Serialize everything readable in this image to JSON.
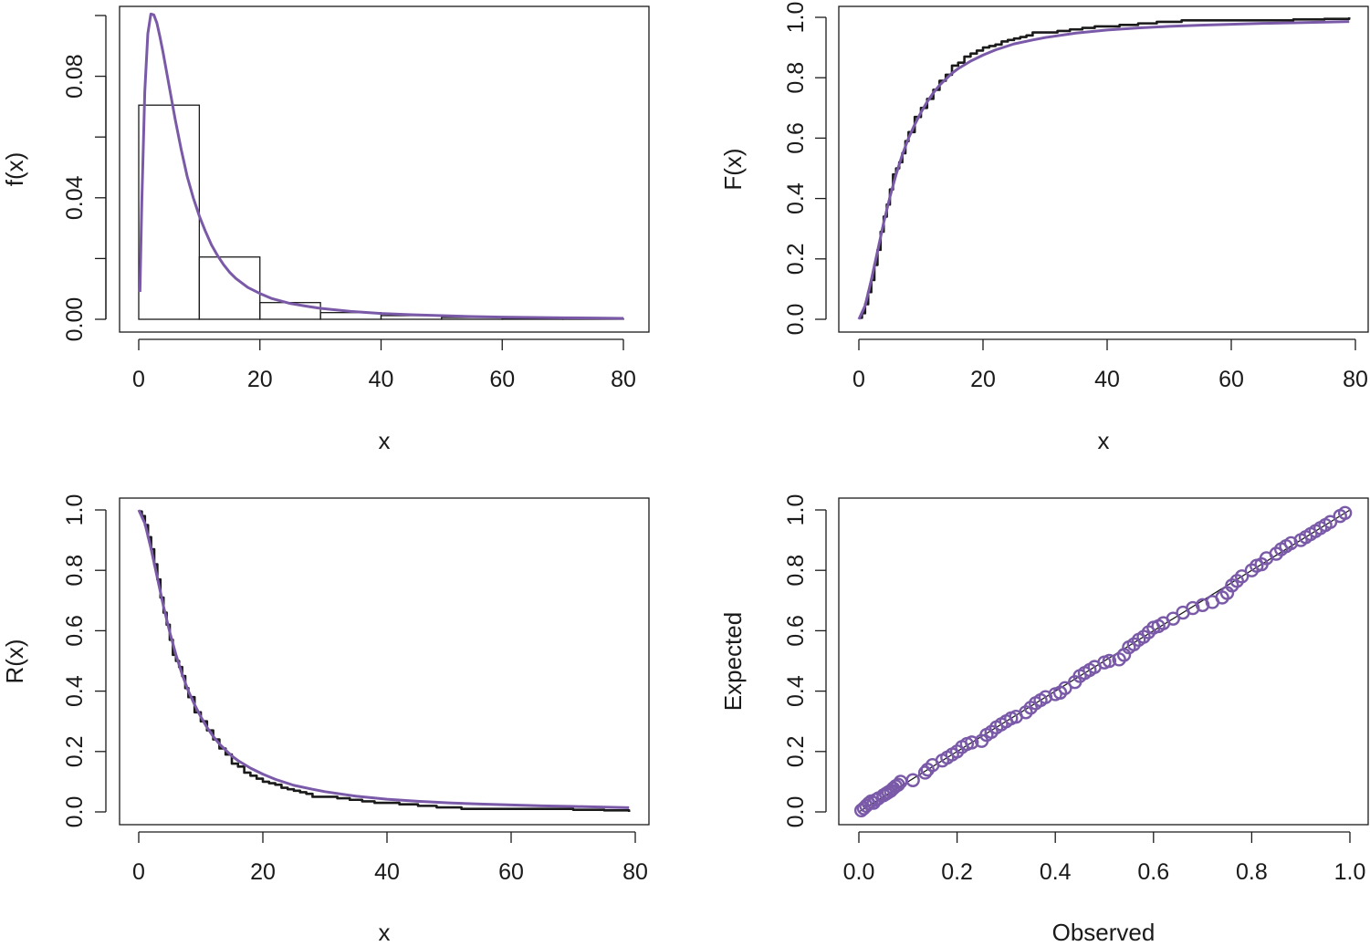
{
  "chart_data": [
    {
      "type": "bar",
      "panel": "top-left",
      "xlabel": "x",
      "ylabel": "f(x)",
      "xlim": [
        0,
        80
      ],
      "ylim": [
        0,
        0.1
      ],
      "xticks": [
        "0",
        "20",
        "40",
        "60",
        "80"
      ],
      "yticks": [
        "0.00",
        "0.04",
        "0.08"
      ],
      "histogram": {
        "bin_edges": [
          0,
          10,
          20,
          30,
          40,
          50,
          60,
          70,
          80
        ],
        "density": [
          0.0705,
          0.0205,
          0.0055,
          0.0022,
          0.0012,
          0.0006,
          0.0004,
          0.0002
        ]
      },
      "fitted_curve": {
        "color": "#7a5aa8",
        "x": [
          0.2,
          0.5,
          1,
          1.5,
          2,
          2.5,
          3,
          3.5,
          4,
          5,
          6,
          7,
          8,
          9,
          10,
          11,
          12,
          13,
          14,
          15,
          16,
          18,
          20,
          22,
          25,
          28,
          30,
          35,
          40,
          45,
          50,
          55,
          60,
          65,
          70,
          75,
          80
        ],
        "y": [
          0.009,
          0.038,
          0.075,
          0.094,
          0.1005,
          0.1002,
          0.0975,
          0.093,
          0.088,
          0.077,
          0.066,
          0.056,
          0.047,
          0.04,
          0.034,
          0.029,
          0.0245,
          0.021,
          0.018,
          0.0155,
          0.0135,
          0.0105,
          0.0085,
          0.0068,
          0.0052,
          0.0042,
          0.0036,
          0.0026,
          0.0019,
          0.0015,
          0.0012,
          0.0009,
          0.0007,
          0.0006,
          0.0005,
          0.0004,
          0.0003
        ]
      }
    },
    {
      "type": "line",
      "panel": "top-right",
      "xlabel": "x",
      "ylabel": "F(x)",
      "xlim": [
        0,
        80
      ],
      "ylim": [
        0,
        1
      ],
      "xticks": [
        "0",
        "20",
        "40",
        "60",
        "80"
      ],
      "yticks": [
        "0.0",
        "0.2",
        "0.4",
        "0.6",
        "0.8",
        "1.0"
      ],
      "series": [
        {
          "color": "#1a1a1a",
          "style": "step",
          "x": [
            0,
            0.5,
            1,
            1.5,
            2,
            2.5,
            3,
            3.5,
            4,
            4.5,
            5,
            5.5,
            6,
            6.5,
            7,
            7.5,
            8,
            9,
            10,
            11,
            12,
            13,
            14,
            15,
            16,
            17,
            18,
            19,
            20,
            21,
            22,
            23,
            24,
            25,
            26,
            27,
            28,
            30,
            32,
            34,
            36,
            38,
            40,
            42,
            45,
            48,
            52,
            58,
            65,
            70,
            75,
            79
          ],
          "y": [
            0.005,
            0.02,
            0.05,
            0.09,
            0.13,
            0.18,
            0.23,
            0.29,
            0.34,
            0.38,
            0.43,
            0.48,
            0.5,
            0.52,
            0.55,
            0.59,
            0.62,
            0.67,
            0.7,
            0.73,
            0.76,
            0.79,
            0.81,
            0.84,
            0.85,
            0.87,
            0.88,
            0.89,
            0.9,
            0.905,
            0.91,
            0.92,
            0.925,
            0.93,
            0.935,
            0.94,
            0.95,
            0.95,
            0.955,
            0.96,
            0.965,
            0.97,
            0.97,
            0.975,
            0.98,
            0.985,
            0.99,
            0.99,
            0.99,
            0.993,
            0.995,
            1.0
          ]
        },
        {
          "color": "#7a5aa8",
          "style": "line",
          "x": [
            0,
            1,
            2,
            3,
            4,
            5,
            6,
            7,
            8,
            9,
            10,
            11,
            12,
            13,
            14,
            15,
            16,
            18,
            20,
            22,
            25,
            28,
            30,
            35,
            40,
            45,
            50,
            55,
            60,
            65,
            70,
            75,
            79
          ],
          "y": [
            0.0,
            0.045,
            0.13,
            0.225,
            0.32,
            0.405,
            0.48,
            0.545,
            0.6,
            0.645,
            0.685,
            0.72,
            0.75,
            0.775,
            0.795,
            0.815,
            0.83,
            0.855,
            0.875,
            0.892,
            0.912,
            0.925,
            0.933,
            0.948,
            0.958,
            0.965,
            0.97,
            0.974,
            0.977,
            0.98,
            0.982,
            0.984,
            0.986
          ]
        }
      ]
    },
    {
      "type": "line",
      "panel": "bottom-left",
      "xlabel": "x",
      "ylabel": "R(x)",
      "xlim": [
        0,
        80
      ],
      "ylim": [
        0,
        1
      ],
      "xticks": [
        "0",
        "20",
        "40",
        "60",
        "80"
      ],
      "yticks": [
        "0.0",
        "0.2",
        "0.4",
        "0.6",
        "0.8",
        "1.0"
      ],
      "series": [
        {
          "color": "#1a1a1a",
          "style": "step",
          "x": [
            0,
            0.5,
            1,
            1.5,
            2,
            2.5,
            3,
            3.5,
            4,
            4.5,
            5,
            5.5,
            6,
            6.5,
            7,
            7.5,
            8,
            9,
            10,
            11,
            12,
            13,
            14,
            15,
            16,
            17,
            18,
            19,
            20,
            21,
            22,
            23,
            24,
            25,
            26,
            27,
            28,
            30,
            32,
            34,
            36,
            38,
            40,
            42,
            45,
            48,
            52,
            58,
            65,
            70,
            75,
            79
          ],
          "y": [
            0.995,
            0.98,
            0.95,
            0.91,
            0.87,
            0.82,
            0.77,
            0.71,
            0.66,
            0.62,
            0.57,
            0.52,
            0.5,
            0.48,
            0.45,
            0.41,
            0.38,
            0.33,
            0.3,
            0.27,
            0.24,
            0.21,
            0.19,
            0.16,
            0.15,
            0.13,
            0.12,
            0.11,
            0.1,
            0.095,
            0.09,
            0.08,
            0.075,
            0.07,
            0.065,
            0.06,
            0.05,
            0.05,
            0.045,
            0.04,
            0.035,
            0.03,
            0.03,
            0.025,
            0.02,
            0.015,
            0.01,
            0.01,
            0.01,
            0.007,
            0.005,
            0.0
          ]
        },
        {
          "color": "#7a5aa8",
          "style": "line",
          "x": [
            0,
            1,
            2,
            3,
            4,
            5,
            6,
            7,
            8,
            9,
            10,
            11,
            12,
            13,
            14,
            15,
            16,
            18,
            20,
            22,
            25,
            28,
            30,
            35,
            40,
            45,
            50,
            55,
            60,
            65,
            70,
            75,
            79
          ],
          "y": [
            1.0,
            0.955,
            0.87,
            0.775,
            0.68,
            0.595,
            0.52,
            0.455,
            0.4,
            0.355,
            0.315,
            0.28,
            0.25,
            0.225,
            0.205,
            0.185,
            0.17,
            0.145,
            0.125,
            0.108,
            0.088,
            0.075,
            0.067,
            0.052,
            0.042,
            0.035,
            0.03,
            0.026,
            0.023,
            0.02,
            0.018,
            0.016,
            0.014
          ]
        }
      ]
    },
    {
      "type": "scatter",
      "panel": "bottom-right",
      "xlabel": "Observed",
      "ylabel": "Expected",
      "xlim": [
        0,
        1
      ],
      "ylim": [
        0,
        1
      ],
      "xticks": [
        "0.0",
        "0.2",
        "0.4",
        "0.6",
        "0.8",
        "1.0"
      ],
      "yticks": [
        "0.0",
        "0.2",
        "0.4",
        "0.6",
        "0.8",
        "1.0"
      ],
      "reference_line": {
        "color": "#1a1a1a",
        "from": [
          0,
          0
        ],
        "to": [
          1,
          1
        ]
      },
      "points": {
        "color": "#7a5aa8",
        "marker": "open-circle",
        "x": [
          0.005,
          0.01,
          0.015,
          0.02,
          0.025,
          0.03,
          0.035,
          0.04,
          0.05,
          0.055,
          0.06,
          0.065,
          0.07,
          0.075,
          0.08,
          0.085,
          0.11,
          0.135,
          0.14,
          0.15,
          0.17,
          0.18,
          0.19,
          0.2,
          0.21,
          0.22,
          0.23,
          0.25,
          0.26,
          0.27,
          0.28,
          0.29,
          0.3,
          0.31,
          0.32,
          0.34,
          0.35,
          0.36,
          0.37,
          0.38,
          0.4,
          0.41,
          0.42,
          0.44,
          0.45,
          0.46,
          0.47,
          0.48,
          0.5,
          0.51,
          0.53,
          0.54,
          0.55,
          0.56,
          0.57,
          0.58,
          0.59,
          0.6,
          0.61,
          0.62,
          0.64,
          0.66,
          0.68,
          0.7,
          0.72,
          0.74,
          0.75,
          0.76,
          0.77,
          0.78,
          0.8,
          0.81,
          0.82,
          0.83,
          0.85,
          0.86,
          0.87,
          0.88,
          0.9,
          0.91,
          0.92,
          0.93,
          0.94,
          0.95,
          0.96,
          0.98,
          0.99
        ],
        "y": [
          0.005,
          0.012,
          0.02,
          0.028,
          0.035,
          0.03,
          0.04,
          0.045,
          0.055,
          0.06,
          0.065,
          0.07,
          0.078,
          0.085,
          0.09,
          0.1,
          0.105,
          0.13,
          0.14,
          0.155,
          0.17,
          0.18,
          0.19,
          0.2,
          0.215,
          0.225,
          0.23,
          0.235,
          0.255,
          0.265,
          0.28,
          0.29,
          0.3,
          0.31,
          0.315,
          0.33,
          0.345,
          0.36,
          0.37,
          0.38,
          0.39,
          0.395,
          0.41,
          0.43,
          0.45,
          0.46,
          0.47,
          0.48,
          0.495,
          0.5,
          0.505,
          0.52,
          0.545,
          0.555,
          0.57,
          0.58,
          0.595,
          0.61,
          0.615,
          0.625,
          0.64,
          0.66,
          0.675,
          0.685,
          0.695,
          0.71,
          0.725,
          0.75,
          0.765,
          0.78,
          0.8,
          0.815,
          0.82,
          0.84,
          0.855,
          0.87,
          0.88,
          0.89,
          0.9,
          0.91,
          0.92,
          0.93,
          0.94,
          0.95,
          0.96,
          0.98,
          0.99
        ]
      }
    }
  ]
}
